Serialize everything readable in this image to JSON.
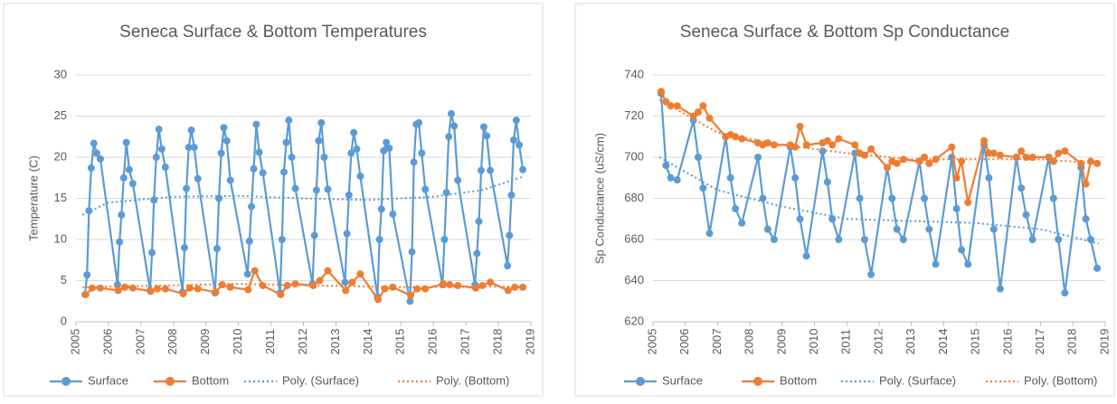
{
  "chart_data": [
    {
      "type": "line",
      "title": "Seneca Surface & Bottom Temperatures",
      "y_label": "Temperature (C)",
      "xlim": [
        2005,
        2019
      ],
      "xticks": [
        2005,
        2006,
        2007,
        2008,
        2009,
        2010,
        2011,
        2012,
        2013,
        2014,
        2015,
        2016,
        2017,
        2018,
        2019
      ],
      "ylim": [
        0,
        30
      ],
      "yticks": [
        0,
        5,
        10,
        15,
        20,
        25,
        30
      ],
      "grid": true,
      "legend": "bottom",
      "series": [
        {
          "name": "Surface",
          "color": "#5b9bd5",
          "style": "markers",
          "x": [
            2005.28,
            2005.34,
            2005.4,
            2005.47,
            2005.55,
            2005.64,
            2005.75,
            2006.28,
            2006.34,
            2006.4,
            2006.47,
            2006.55,
            2006.64,
            2006.75,
            2007.28,
            2007.34,
            2007.4,
            2007.47,
            2007.55,
            2007.64,
            2007.75,
            2008.28,
            2008.34,
            2008.4,
            2008.47,
            2008.55,
            2008.64,
            2008.75,
            2009.28,
            2009.34,
            2009.4,
            2009.47,
            2009.55,
            2009.64,
            2009.75,
            2010.28,
            2010.34,
            2010.4,
            2010.47,
            2010.55,
            2010.64,
            2010.75,
            2011.28,
            2011.34,
            2011.4,
            2011.47,
            2011.55,
            2011.64,
            2011.75,
            2012.28,
            2012.34,
            2012.4,
            2012.47,
            2012.55,
            2012.64,
            2012.75,
            2013.28,
            2013.34,
            2013.4,
            2013.47,
            2013.55,
            2013.64,
            2013.75,
            2014.28,
            2014.34,
            2014.4,
            2014.47,
            2014.55,
            2014.64,
            2014.75,
            2015.28,
            2015.34,
            2015.4,
            2015.47,
            2015.55,
            2015.64,
            2015.75,
            2016.28,
            2016.34,
            2016.4,
            2016.47,
            2016.55,
            2016.64,
            2016.75,
            2017.28,
            2017.34,
            2017.4,
            2017.47,
            2017.55,
            2017.64,
            2017.75,
            2018.28,
            2018.34,
            2018.4,
            2018.47,
            2018.55,
            2018.64,
            2018.75
          ],
          "values": [
            3.3,
            5.7,
            13.5,
            18.7,
            21.7,
            20.5,
            19.8,
            4.5,
            9.7,
            13,
            17.5,
            21.8,
            18.5,
            16.8,
            3.8,
            8.4,
            14.8,
            20,
            23.4,
            21,
            18.8,
            3.6,
            9,
            16.2,
            21.2,
            23.3,
            21.2,
            17.4,
            3.5,
            8.9,
            15,
            20.5,
            23.6,
            22,
            17.2,
            5.8,
            9.8,
            14,
            18.6,
            24,
            20.6,
            18.1,
            3.5,
            10,
            18.2,
            21.8,
            24.5,
            20,
            16.2,
            4.6,
            10.5,
            16,
            22,
            24.2,
            20,
            16.1,
            4.8,
            10.7,
            15.4,
            20.5,
            23,
            21,
            17.7,
            3,
            10,
            13.7,
            20.8,
            21.8,
            21.1,
            13.1,
            2.5,
            8.5,
            19.4,
            24,
            24.2,
            20.5,
            16.1,
            4.5,
            10,
            15.7,
            22.5,
            25.3,
            23.8,
            17.2,
            4.5,
            8.3,
            12.2,
            18.4,
            23.7,
            22.6,
            18.4,
            6.8,
            10.5,
            15.4,
            22.1,
            24.5,
            21.5,
            18.5
          ]
        },
        {
          "name": "Bottom",
          "color": "#ed7d31",
          "style": "markers",
          "x": [
            2005.3,
            2005.5,
            2005.75,
            2006.3,
            2006.5,
            2006.75,
            2007.3,
            2007.5,
            2007.75,
            2008.3,
            2008.5,
            2008.75,
            2009.3,
            2009.5,
            2009.75,
            2010.3,
            2010.5,
            2010.75,
            2011.3,
            2011.5,
            2011.75,
            2012.3,
            2012.5,
            2012.75,
            2013.3,
            2013.5,
            2013.75,
            2014.3,
            2014.5,
            2014.75,
            2015.3,
            2015.5,
            2015.75,
            2016.3,
            2016.5,
            2016.75,
            2017.3,
            2017.5,
            2017.75,
            2018.3,
            2018.5,
            2018.75
          ],
          "values": [
            3.3,
            4.1,
            4.1,
            3.8,
            4.2,
            4.1,
            3.7,
            4,
            4,
            3.4,
            4.1,
            4,
            3.6,
            4.5,
            4.2,
            3.9,
            6.2,
            4.4,
            3.3,
            4.4,
            4.6,
            4.4,
            5,
            6.2,
            3.8,
            4.8,
            5.8,
            2.7,
            4,
            4.2,
            3.2,
            4,
            4,
            4.6,
            4.5,
            4.4,
            4.1,
            4.4,
            4.8,
            3.8,
            4.2,
            4.2
          ]
        },
        {
          "name": "Poly. (Surface)",
          "color": "#5b9bd5",
          "style": "dotted",
          "x": [
            2005.2,
            2006,
            2008,
            2010,
            2012,
            2014,
            2016,
            2017.5,
            2018.8
          ],
          "values": [
            13,
            14.5,
            15.2,
            15.3,
            15,
            14.8,
            15.2,
            16,
            17.7
          ]
        },
        {
          "name": "Poly. (Bottom)",
          "color": "#ed7d31",
          "style": "dotted",
          "x": [
            2005.2,
            2010,
            2015,
            2018.8
          ],
          "values": [
            4.2,
            4.6,
            4.2,
            4.3
          ]
        }
      ]
    },
    {
      "type": "line",
      "title": "Seneca Surface & Bottom Sp Conductance",
      "y_label": "Sp Conductance (uS/cm)",
      "xlim": [
        2005,
        2019
      ],
      "xticks": [
        2005,
        2006,
        2007,
        2008,
        2009,
        2010,
        2011,
        2012,
        2013,
        2014,
        2015,
        2016,
        2017,
        2018,
        2019
      ],
      "ylim": [
        620,
        740
      ],
      "yticks": [
        620,
        640,
        660,
        680,
        700,
        720,
        740
      ],
      "grid": true,
      "legend": "bottom",
      "series": [
        {
          "name": "Surface",
          "color": "#5b9bd5",
          "style": "markers",
          "x": [
            2005.25,
            2005.4,
            2005.55,
            2005.75,
            2006.25,
            2006.4,
            2006.55,
            2006.75,
            2007.25,
            2007.4,
            2007.55,
            2007.75,
            2008.25,
            2008.4,
            2008.55,
            2008.75,
            2009.25,
            2009.4,
            2009.55,
            2009.75,
            2010.25,
            2010.4,
            2010.55,
            2010.75,
            2011.25,
            2011.4,
            2011.55,
            2011.75,
            2012.25,
            2012.4,
            2012.55,
            2012.75,
            2013.25,
            2013.4,
            2013.55,
            2013.75,
            2014.25,
            2014.4,
            2014.55,
            2014.75,
            2015.25,
            2015.4,
            2015.55,
            2015.75,
            2016.25,
            2016.4,
            2016.55,
            2016.75,
            2017.25,
            2017.4,
            2017.55,
            2017.75,
            2018.25,
            2018.4,
            2018.55,
            2018.75
          ],
          "values": [
            731,
            696,
            690,
            689,
            718,
            700,
            685,
            663,
            710,
            690,
            675,
            668,
            700,
            680,
            665,
            660,
            705,
            690,
            670,
            652,
            703,
            688,
            670,
            660,
            702,
            680,
            660,
            643,
            695,
            680,
            665,
            660,
            698,
            680,
            665,
            648,
            700,
            675,
            655,
            648,
            706,
            690,
            665,
            636,
            700,
            685,
            672,
            660,
            700,
            680,
            660,
            634,
            695,
            670,
            660,
            646
          ]
        },
        {
          "name": "Bottom",
          "color": "#ed7d31",
          "style": "markers",
          "x": [
            2005.25,
            2005.4,
            2005.55,
            2005.75,
            2006.25,
            2006.4,
            2006.55,
            2006.75,
            2007.25,
            2007.4,
            2007.55,
            2007.75,
            2008.25,
            2008.4,
            2008.55,
            2008.75,
            2009.25,
            2009.4,
            2009.55,
            2009.75,
            2010.25,
            2010.4,
            2010.55,
            2010.75,
            2011.25,
            2011.4,
            2011.55,
            2011.75,
            2012.25,
            2012.4,
            2012.55,
            2012.75,
            2013.25,
            2013.4,
            2013.55,
            2013.75,
            2014.25,
            2014.4,
            2014.55,
            2014.75,
            2015.25,
            2015.4,
            2015.55,
            2015.75,
            2016.25,
            2016.4,
            2016.55,
            2016.75,
            2017.25,
            2017.4,
            2017.55,
            2017.75,
            2018.25,
            2018.4,
            2018.55,
            2018.75
          ],
          "values": [
            732,
            727,
            725,
            725,
            720,
            722,
            725,
            719,
            710,
            711,
            710,
            709,
            707,
            706,
            707,
            706,
            706,
            705,
            715,
            706,
            707,
            708,
            706,
            709,
            706,
            702,
            701,
            704,
            695,
            698,
            697,
            699,
            698,
            700,
            697,
            699,
            705,
            690,
            698,
            678,
            708,
            702,
            702,
            701,
            700,
            703,
            700,
            700,
            700,
            698,
            702,
            703,
            697,
            687,
            698,
            697
          ]
        },
        {
          "name": "Poly. (Surface)",
          "color": "#5b9bd5",
          "style": "dotted",
          "x": [
            2005.2,
            2007,
            2009,
            2011,
            2013,
            2015,
            2017,
            2018.8
          ],
          "values": [
            700,
            684,
            676,
            670,
            669,
            668,
            665,
            658
          ]
        },
        {
          "name": "Poly. (Bottom)",
          "color": "#ed7d31",
          "style": "dotted",
          "x": [
            2005.2,
            2007,
            2009,
            2011,
            2013,
            2015,
            2017,
            2018.8
          ],
          "values": [
            728,
            712,
            706,
            702,
            699,
            699,
            699,
            697
          ]
        }
      ]
    }
  ]
}
